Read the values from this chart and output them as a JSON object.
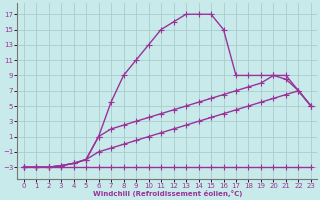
{
  "bg_color": "#c8eaea",
  "grid_color": "#aacccc",
  "line_color": "#993399",
  "xlabel": "Windchill (Refroidissement éolien,°C)",
  "x_ticks": [
    0,
    1,
    2,
    3,
    4,
    5,
    6,
    7,
    8,
    9,
    10,
    11,
    12,
    13,
    14,
    15,
    16,
    17,
    18,
    19,
    20,
    21,
    22,
    23
  ],
  "y_ticks": [
    -3,
    -1,
    1,
    3,
    5,
    7,
    9,
    11,
    13,
    15,
    17
  ],
  "xlim": [
    -0.5,
    23.5
  ],
  "ylim": [
    -4.5,
    18.5
  ],
  "line1_x": [
    0,
    1,
    2,
    3,
    4,
    5,
    6,
    7,
    8,
    9,
    10,
    11,
    12,
    13,
    14,
    15,
    16,
    17,
    18,
    19,
    20,
    21,
    22,
    23
  ],
  "line1_y": [
    -3,
    -3,
    -3,
    -3,
    -3,
    -3,
    -3,
    -3,
    -3,
    -3,
    -3,
    -3,
    -3,
    -3,
    -3,
    -3,
    -3,
    -3,
    -3,
    -3,
    -3,
    -3,
    -3,
    -3
  ],
  "line2_x": [
    0,
    1,
    2,
    3,
    4,
    5,
    6,
    7,
    8,
    9,
    10,
    11,
    12,
    13,
    14,
    15,
    16,
    17,
    18,
    19,
    20,
    21,
    22,
    23
  ],
  "line2_y": [
    -3,
    -3,
    -3,
    -2.8,
    -2.5,
    -2,
    -1,
    -0.5,
    0,
    0.5,
    1,
    1.5,
    2,
    2.5,
    3,
    3.5,
    4,
    4.5,
    5,
    5.5,
    6,
    6.5,
    7,
    5
  ],
  "line3_x": [
    0,
    1,
    2,
    3,
    4,
    5,
    6,
    7,
    8,
    9,
    10,
    11,
    12,
    13,
    14,
    15,
    16,
    17,
    18,
    19,
    20,
    21,
    22,
    23
  ],
  "line3_y": [
    -3,
    -3,
    -3,
    -2.8,
    -2.5,
    -2,
    1,
    2,
    2.5,
    3,
    3.5,
    4,
    4.5,
    5,
    5.5,
    6,
    6.5,
    7,
    7.5,
    8,
    9,
    9,
    7,
    5
  ],
  "line4_x": [
    0,
    1,
    2,
    3,
    4,
    5,
    6,
    7,
    8,
    9,
    10,
    11,
    12,
    13,
    14,
    15,
    16,
    17,
    18,
    19,
    20,
    21,
    22,
    23
  ],
  "line4_y": [
    -3,
    -3,
    -3,
    -2.8,
    -2.5,
    -2,
    1,
    5.5,
    9,
    11,
    13,
    15,
    16,
    17,
    17,
    17,
    15,
    9,
    9,
    9,
    9,
    8.5,
    7,
    5
  ],
  "marker": "+",
  "markersize": 4,
  "linewidth": 1.0,
  "tick_fontsize": 5,
  "xlabel_fontsize": 5,
  "xlabel_fontweight": "bold"
}
